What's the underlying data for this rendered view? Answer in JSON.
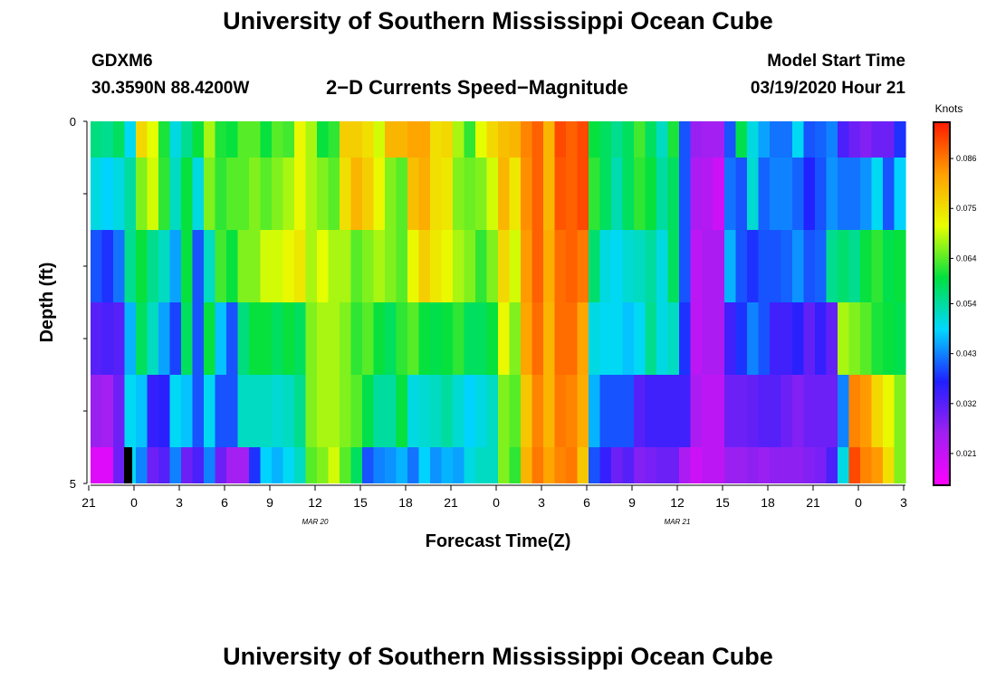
{
  "title": "University of Southern Mississippi Ocean Cube",
  "footer_title": "University of Southern Mississippi Ocean Cube",
  "station": {
    "id": "GDXM6",
    "location": "30.3590N 88.4200W"
  },
  "chart_title": "2−D Currents Speed−Magnitude",
  "model": {
    "label": "Model Start Time",
    "value": "03/19/2020 Hour 21"
  },
  "chart_data": {
    "type": "heatmap",
    "title": "2-D Currents Speed-Magnitude",
    "xlabel": "Forecast Time(Z)",
    "ylabel": "Depth (ft)",
    "x_tick_labels": [
      "21",
      "0",
      "3",
      "6",
      "9",
      "12",
      "15",
      "18",
      "21",
      "0",
      "3",
      "6",
      "9",
      "12",
      "15",
      "18",
      "21",
      "0",
      "3"
    ],
    "date_labels": [
      {
        "text": "MAR 20",
        "tick_index": 5
      },
      {
        "text": "MAR 21",
        "tick_index": 13
      }
    ],
    "y_tick_labels": [
      "0",
      "5"
    ],
    "ylim": [
      0,
      5
    ],
    "depth_bands": [
      0,
      1,
      2,
      3,
      4,
      5
    ],
    "colorbar": {
      "label": "Knots",
      "ticks": [
        "0.086",
        "0.075",
        "0.064",
        "0.054",
        "0.043",
        "0.032",
        "0.021"
      ],
      "min": 0.014,
      "max": 0.094,
      "stops": [
        "#ff00ff",
        "#a020f0",
        "#2020ff",
        "#00d8ff",
        "#00e040",
        "#e8ff00",
        "#ffa000",
        "#ff1a00"
      ]
    },
    "series": [
      {
        "name": "depth 0-1 ft",
        "values": [
          0.056,
          0.055,
          0.058,
          0.049,
          0.076,
          0.071,
          0.061,
          0.05,
          0.055,
          0.06,
          0.068,
          0.061,
          0.06,
          0.064,
          0.064,
          0.06,
          0.064,
          0.063,
          0.072,
          0.068,
          0.06,
          0.062,
          0.077,
          0.077,
          0.075,
          0.07,
          0.08,
          0.08,
          0.082,
          0.082,
          0.075,
          0.076,
          0.068,
          0.062,
          0.071,
          0.076,
          0.079,
          0.08,
          0.085,
          0.088,
          0.08,
          0.09,
          0.088,
          0.09,
          0.06,
          0.058,
          0.055,
          0.058,
          0.063,
          0.058,
          0.052,
          0.061,
          0.04,
          0.026,
          0.025,
          0.025,
          0.04,
          0.059,
          0.05,
          0.045,
          0.042,
          0.042,
          0.049,
          0.04,
          0.041,
          0.043,
          0.033,
          0.03,
          0.028,
          0.03,
          0.03,
          0.038
        ]
      },
      {
        "name": "depth 1-2 ft",
        "values": [
          0.05,
          0.048,
          0.05,
          0.054,
          0.066,
          0.07,
          0.062,
          0.052,
          0.06,
          0.05,
          0.066,
          0.062,
          0.064,
          0.064,
          0.066,
          0.064,
          0.066,
          0.068,
          0.072,
          0.068,
          0.066,
          0.064,
          0.075,
          0.08,
          0.077,
          0.072,
          0.066,
          0.064,
          0.079,
          0.081,
          0.075,
          0.074,
          0.066,
          0.065,
          0.066,
          0.07,
          0.08,
          0.074,
          0.084,
          0.088,
          0.08,
          0.089,
          0.088,
          0.09,
          0.062,
          0.058,
          0.053,
          0.058,
          0.062,
          0.06,
          0.054,
          0.058,
          0.04,
          0.024,
          0.023,
          0.02,
          0.042,
          0.04,
          0.051,
          0.041,
          0.043,
          0.043,
          0.041,
          0.037,
          0.04,
          0.044,
          0.042,
          0.042,
          0.044,
          0.049,
          0.04,
          0.048
        ]
      },
      {
        "name": "depth 2-3 ft",
        "values": [
          0.04,
          0.038,
          0.042,
          0.055,
          0.06,
          0.055,
          0.052,
          0.045,
          0.06,
          0.04,
          0.052,
          0.063,
          0.06,
          0.066,
          0.066,
          0.07,
          0.07,
          0.072,
          0.074,
          0.068,
          0.071,
          0.068,
          0.068,
          0.064,
          0.066,
          0.068,
          0.066,
          0.064,
          0.072,
          0.077,
          0.074,
          0.072,
          0.068,
          0.066,
          0.062,
          0.066,
          0.076,
          0.07,
          0.083,
          0.088,
          0.081,
          0.087,
          0.088,
          0.086,
          0.057,
          0.05,
          0.049,
          0.051,
          0.052,
          0.054,
          0.05,
          0.058,
          0.04,
          0.022,
          0.024,
          0.024,
          0.046,
          0.04,
          0.038,
          0.04,
          0.04,
          0.041,
          0.044,
          0.04,
          0.041,
          0.055,
          0.057,
          0.055,
          0.06,
          0.062,
          0.059,
          0.06
        ]
      },
      {
        "name": "depth 3-4 ft",
        "values": [
          0.032,
          0.033,
          0.032,
          0.046,
          0.058,
          0.052,
          0.045,
          0.039,
          0.058,
          0.04,
          0.06,
          0.047,
          0.04,
          0.056,
          0.06,
          0.06,
          0.058,
          0.06,
          0.058,
          0.066,
          0.068,
          0.068,
          0.066,
          0.062,
          0.064,
          0.06,
          0.058,
          0.062,
          0.064,
          0.06,
          0.059,
          0.06,
          0.062,
          0.058,
          0.058,
          0.06,
          0.072,
          0.066,
          0.082,
          0.087,
          0.08,
          0.087,
          0.087,
          0.082,
          0.05,
          0.049,
          0.049,
          0.047,
          0.049,
          0.055,
          0.05,
          0.052,
          0.038,
          0.022,
          0.024,
          0.024,
          0.034,
          0.038,
          0.043,
          0.04,
          0.034,
          0.034,
          0.036,
          0.031,
          0.035,
          0.031,
          0.068,
          0.066,
          0.064,
          0.061,
          0.06,
          0.059
        ]
      },
      {
        "name": "depth 4-5 ft",
        "values": [
          0.026,
          0.025,
          0.03,
          0.049,
          0.047,
          0.035,
          0.036,
          0.049,
          0.047,
          0.04,
          0.049,
          0.04,
          0.04,
          0.052,
          0.052,
          0.052,
          0.051,
          0.052,
          0.055,
          0.066,
          0.068,
          0.068,
          0.066,
          0.064,
          0.059,
          0.054,
          0.054,
          0.06,
          0.05,
          0.051,
          0.052,
          0.054,
          0.051,
          0.048,
          0.05,
          0.052,
          0.066,
          0.064,
          0.078,
          0.085,
          0.08,
          0.086,
          0.085,
          0.081,
          0.046,
          0.04,
          0.04,
          0.04,
          0.032,
          0.034,
          0.034,
          0.034,
          0.034,
          0.024,
          0.022,
          0.022,
          0.03,
          0.03,
          0.031,
          0.032,
          0.032,
          0.03,
          0.028,
          0.03,
          0.03,
          0.03,
          0.043,
          0.085,
          0.083,
          0.076,
          0.072,
          0.066
        ]
      },
      {
        "name": "depth 5 ft (bottom)",
        "values": [
          0.018,
          0.018,
          0.03,
          0.049,
          0.043,
          0.03,
          0.032,
          0.043,
          0.03,
          0.033,
          0.043,
          0.03,
          0.025,
          0.025,
          0.038,
          0.048,
          0.046,
          0.049,
          0.052,
          0.064,
          0.066,
          0.07,
          0.064,
          0.058,
          0.04,
          0.043,
          0.044,
          0.046,
          0.042,
          0.048,
          0.044,
          0.046,
          0.045,
          0.05,
          0.052,
          0.052,
          0.066,
          0.062,
          0.08,
          0.086,
          0.082,
          0.085,
          0.086,
          0.078,
          0.04,
          0.035,
          0.03,
          0.032,
          0.028,
          0.029,
          0.03,
          0.03,
          0.024,
          0.02,
          0.022,
          0.022,
          0.026,
          0.026,
          0.027,
          0.026,
          0.027,
          0.027,
          0.027,
          0.028,
          0.029,
          0.033,
          0.05,
          0.09,
          0.085,
          0.083,
          0.075,
          0.066
        ]
      }
    ]
  }
}
